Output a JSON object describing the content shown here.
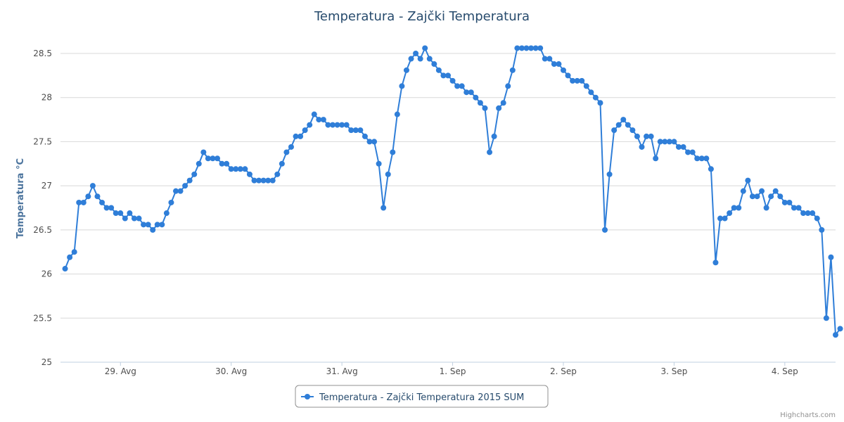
{
  "chart_data": {
    "type": "line",
    "title": "Temperatura - Zajčki Temperatura",
    "ylabel": "Temperatura °C",
    "xlabel": "",
    "ylim": [
      25,
      28.5
    ],
    "yticks": [
      "25",
      "25.5",
      "26",
      "26.5",
      "27",
      "27.5",
      "28",
      "28.5"
    ],
    "xlim": [
      "2015-08-28 11:00",
      "2015-09-04 11:00"
    ],
    "xticks": [
      {
        "x": "2015-08-29",
        "label": "29. Avg"
      },
      {
        "x": "2015-08-30",
        "label": "30. Avg"
      },
      {
        "x": "2015-08-31",
        "label": "31. Avg"
      },
      {
        "x": "2015-09-01",
        "label": "1. Sep"
      },
      {
        "x": "2015-09-02",
        "label": "2. Sep"
      },
      {
        "x": "2015-09-03",
        "label": "3. Sep"
      },
      {
        "x": "2015-09-04",
        "label": "4. Sep"
      }
    ],
    "grid": true,
    "legend_position": "bottom-center",
    "series": [
      {
        "name": "Temperatura - Zajčki Temperatura 2015 SUM",
        "color": "#2f7ed8",
        "x_start": "2015-08-28 12:00",
        "interval_hours": 1,
        "values": [
          26.06,
          26.19,
          26.25,
          26.81,
          26.81,
          26.88,
          27.0,
          26.88,
          26.81,
          26.75,
          26.75,
          26.69,
          26.69,
          26.63,
          26.69,
          26.63,
          26.63,
          26.56,
          26.56,
          26.5,
          26.56,
          26.56,
          26.69,
          26.81,
          26.94,
          26.94,
          27.0,
          27.06,
          27.13,
          27.25,
          27.38,
          27.31,
          27.31,
          27.31,
          27.25,
          27.25,
          27.19,
          27.19,
          27.19,
          27.19,
          27.13,
          27.06,
          27.06,
          27.06,
          27.06,
          27.06,
          27.13,
          27.25,
          27.38,
          27.44,
          27.56,
          27.56,
          27.63,
          27.69,
          27.81,
          27.75,
          27.75,
          27.69,
          27.69,
          27.69,
          27.69,
          27.69,
          27.63,
          27.63,
          27.63,
          27.56,
          27.5,
          27.5,
          27.25,
          26.75,
          27.13,
          27.38,
          27.81,
          28.13,
          28.31,
          28.44,
          28.5,
          28.44,
          28.56,
          28.44,
          28.38,
          28.31,
          28.25,
          28.25,
          28.19,
          28.13,
          28.13,
          28.06,
          28.06,
          28.0,
          27.94,
          27.88,
          27.38,
          27.56,
          27.88,
          27.94,
          28.13,
          28.31,
          28.56,
          28.56,
          28.56,
          28.56,
          28.56,
          28.56,
          28.44,
          28.44,
          28.38,
          28.38,
          28.31,
          28.25,
          28.19,
          28.19,
          28.19,
          28.13,
          28.06,
          28.0,
          27.94,
          26.5,
          27.13,
          27.63,
          27.69,
          27.75,
          27.69,
          27.63,
          27.56,
          27.44,
          27.56,
          27.56,
          27.31,
          27.5,
          27.5,
          27.5,
          27.5,
          27.44,
          27.44,
          27.38,
          27.38,
          27.31,
          27.31,
          27.31,
          27.19,
          26.13,
          26.63,
          26.63,
          26.69,
          26.75,
          26.75,
          26.94,
          27.06,
          26.88,
          26.88,
          26.94,
          26.75,
          26.88,
          26.94,
          26.88,
          26.81,
          26.81,
          26.75,
          26.75,
          26.69,
          26.69,
          26.69,
          26.63,
          26.5,
          25.5,
          26.19,
          25.31,
          25.38
        ]
      }
    ]
  },
  "credits": "Highcharts.com"
}
